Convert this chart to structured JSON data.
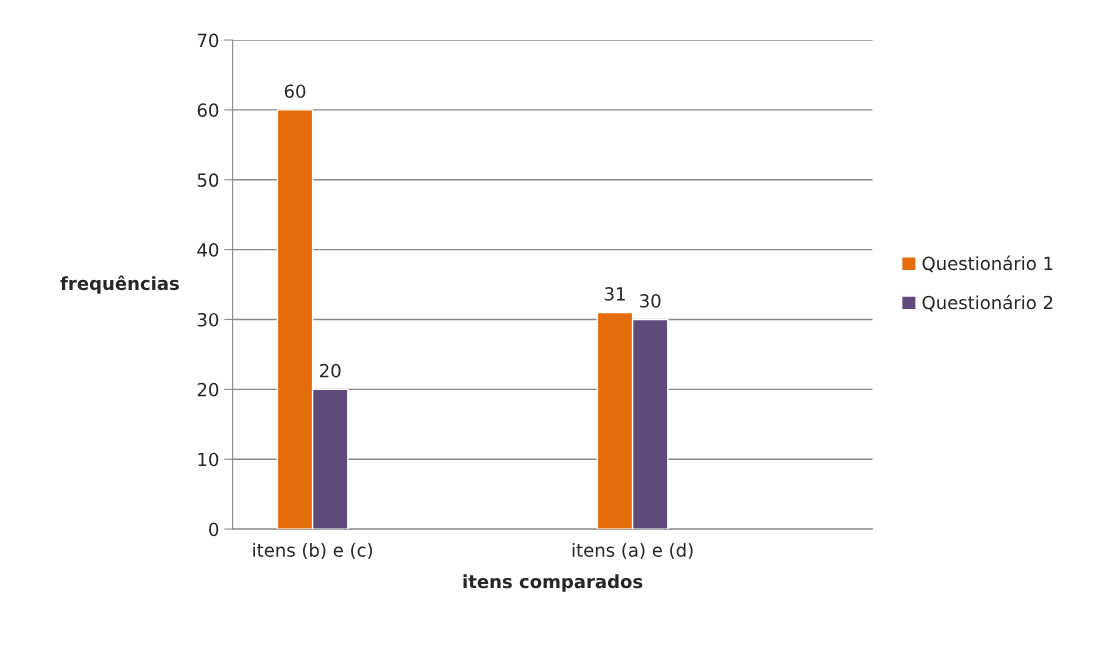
{
  "chart_data": {
    "type": "bar",
    "xlabel": "itens comparados",
    "ylabel": "frequências",
    "categories": [
      "itens (b) e (c)",
      null,
      "itens (a) e (d)",
      null
    ],
    "series": [
      {
        "name": "Questionário 1",
        "color": "#e46c0a",
        "values": [
          60,
          null,
          31,
          null
        ]
      },
      {
        "name": "Questionário 2",
        "color": "#604a7b",
        "values": [
          20,
          null,
          30,
          null
        ]
      }
    ],
    "ylim": [
      0,
      70
    ],
    "yticks": [
      0,
      10,
      20,
      30,
      40,
      50,
      60,
      70
    ],
    "grid": "y",
    "legend": "right",
    "data_labels": true
  }
}
